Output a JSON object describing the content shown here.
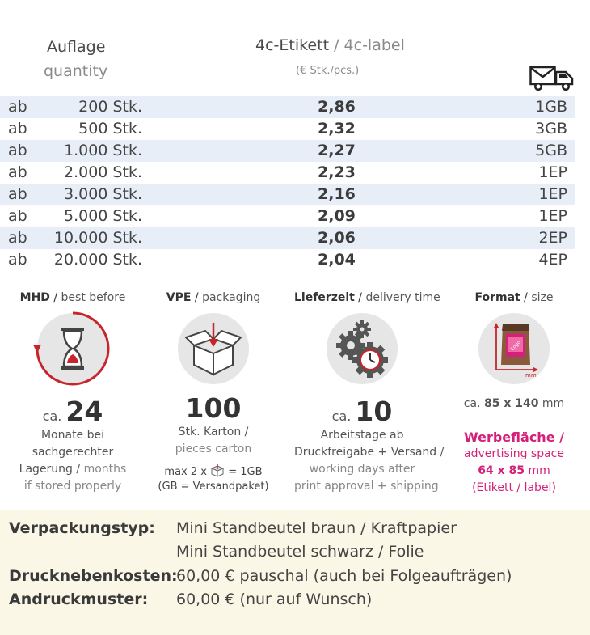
{
  "header": {
    "quantity_de": "Auflage",
    "quantity_en": "quantity",
    "label_de": "4c-Etikett",
    "label_sep": " / ",
    "label_en": "4c-label",
    "unit": "(€ Stk./pcs.)",
    "shipping_icon": "mail-truck-icon"
  },
  "price_table": {
    "rows": [
      {
        "ab": "ab",
        "quantity": "200 Stk.",
        "price": "2,86",
        "shipping": "1GB"
      },
      {
        "ab": "ab",
        "quantity": "500 Stk.",
        "price": "2,32",
        "shipping": "3GB"
      },
      {
        "ab": "ab",
        "quantity": "1.000 Stk.",
        "price": "2,27",
        "shipping": "5GB"
      },
      {
        "ab": "ab",
        "quantity": "2.000 Stk.",
        "price": "2,23",
        "shipping": "1EP"
      },
      {
        "ab": "ab",
        "quantity": "3.000 Stk.",
        "price": "2,16",
        "shipping": "1EP"
      },
      {
        "ab": "ab",
        "quantity": "5.000 Stk.",
        "price": "2,09",
        "shipping": "1EP"
      },
      {
        "ab": "ab",
        "quantity": "10.000 Stk.",
        "price": "2,06",
        "shipping": "2EP"
      },
      {
        "ab": "ab",
        "quantity": "20.000 Stk.",
        "price": "2,04",
        "shipping": "4EP"
      }
    ]
  },
  "info": {
    "mhd": {
      "title_de": "MHD",
      "title_en": "best before",
      "icon": "hourglass-icon",
      "ca": "ca.",
      "value": "24",
      "line1": "Monate bei",
      "line2": "sachgerechter",
      "line3_de": "Lagerung",
      "line3_en": "months",
      "line4": "if stored properly"
    },
    "vpe": {
      "title_de": "VPE",
      "title_en": "packaging",
      "icon": "box-icon",
      "value": "100",
      "line1": "Stk. Karton /",
      "line2": "pieces carton",
      "max_pre": "max 2 x",
      "max_post": "= 1GB",
      "note": "(GB = Versandpaket)"
    },
    "lieferzeit": {
      "title_de": "Lieferzeit",
      "title_en": "delivery time",
      "icon": "gears-clock-icon",
      "ca": "ca.",
      "value": "10",
      "line1": "Arbeitstage ab",
      "line2": "Druckfreigabe + Versand /",
      "line3": "working days after",
      "line4": "print approval + shipping"
    },
    "format": {
      "title_de": "Format",
      "title_en": "size",
      "icon": "pouch-size-icon",
      "icon_unit": "mm",
      "ca": "ca.",
      "size": "85 x 140",
      "size_unit": "mm",
      "ws_de": "Werbefläche /",
      "ws_en": "advertising space",
      "ws_size": "64 x 85",
      "ws_unit": "mm",
      "ws_note": "(Etikett / label)"
    }
  },
  "details": {
    "packaging_label": "Verpackungstyp:",
    "packaging_line1": "Mini Standbeutel braun / Kraftpapier",
    "packaging_line2": "Mini Standbeutel schwarz / Folie",
    "setup_label": "Drucknebenkosten:",
    "setup_value": "60,00 € pauschal (auch bei Folgeaufträgen)",
    "proof_label": "Andruckmuster:",
    "proof_value": "60,00 € (nur auf Wunsch)"
  },
  "colors": {
    "row_shade": "#e8eef7",
    "accent_pink": "#d4207a",
    "accent_red": "#c8242b",
    "panel_bg": "#fbf7e6"
  }
}
